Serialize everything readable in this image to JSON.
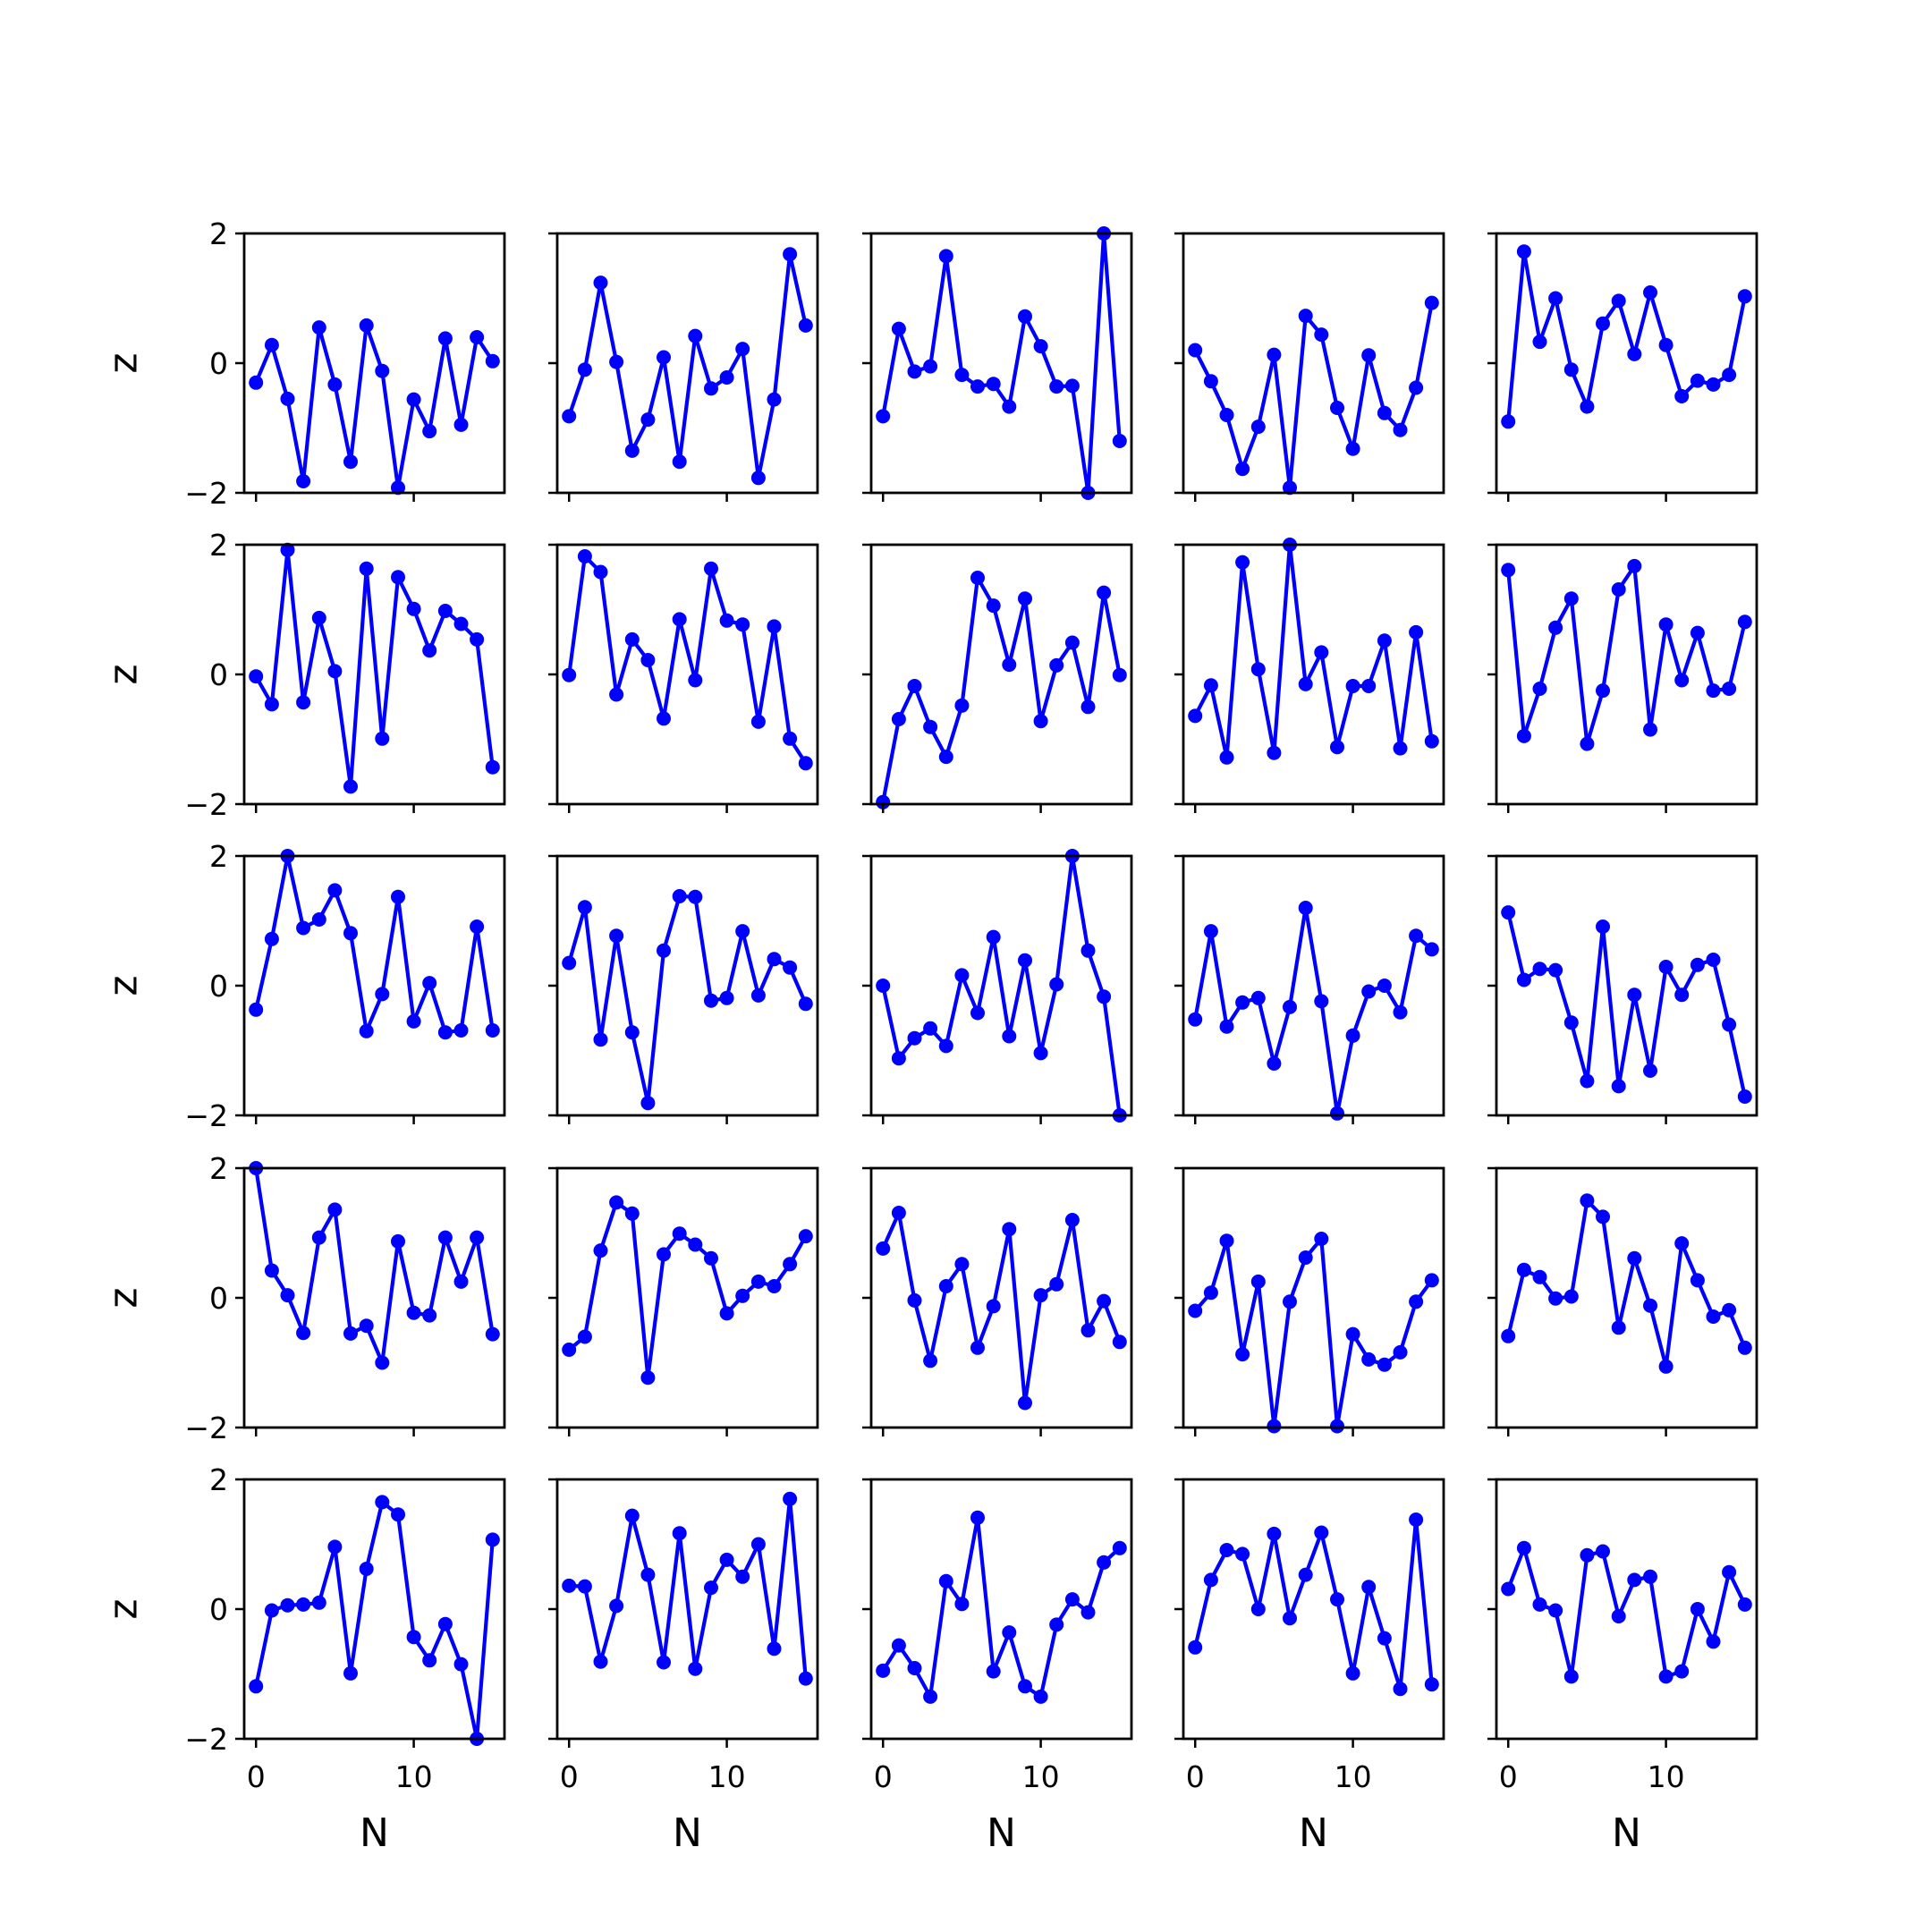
{
  "figure": {
    "rows": 5,
    "cols": 5,
    "line_color": "#0000ff",
    "xlabel": "N",
    "ylabel": "z",
    "ylim": [
      -2,
      2
    ],
    "xlim": [
      -0.75,
      15.75
    ],
    "yticks": [
      {
        "value": -2,
        "label": "−2"
      },
      {
        "value": 0,
        "label": "0"
      },
      {
        "value": 2,
        "label": "2"
      }
    ],
    "xticks": [
      {
        "value": 0,
        "label": "0"
      },
      {
        "value": 10,
        "label": "10"
      }
    ]
  },
  "chart_data": [
    {
      "type": "line",
      "row": 0,
      "col": 0,
      "x": [
        0,
        1,
        2,
        3,
        4,
        5,
        6,
        7,
        8,
        9,
        10,
        11,
        12,
        13,
        14,
        15
      ],
      "y": [
        -0.3,
        0.28,
        -0.55,
        -1.82,
        0.55,
        -0.33,
        -1.52,
        0.58,
        -0.12,
        -1.92,
        -0.56,
        -1.05,
        0.38,
        -0.95,
        0.4,
        0.03
      ]
    },
    {
      "type": "line",
      "row": 0,
      "col": 1,
      "x": [
        0,
        1,
        2,
        3,
        4,
        5,
        6,
        7,
        8,
        9,
        10,
        11,
        12,
        13,
        14,
        15
      ],
      "y": [
        -0.82,
        -0.1,
        1.24,
        0.02,
        -1.35,
        -0.87,
        0.09,
        -1.52,
        0.42,
        -0.39,
        -0.22,
        0.22,
        -1.77,
        -0.56,
        1.68,
        0.58
      ]
    },
    {
      "type": "line",
      "row": 0,
      "col": 2,
      "x": [
        0,
        1,
        2,
        3,
        4,
        5,
        6,
        7,
        8,
        9,
        10,
        11,
        12,
        13,
        14,
        15
      ],
      "y": [
        -0.82,
        0.53,
        -0.13,
        -0.05,
        1.65,
        -0.18,
        -0.36,
        -0.32,
        -0.67,
        0.72,
        0.26,
        -0.36,
        -0.35,
        -2.0,
        2.0,
        -1.2
      ]
    },
    {
      "type": "line",
      "row": 0,
      "col": 3,
      "x": [
        0,
        1,
        2,
        3,
        4,
        5,
        6,
        7,
        8,
        9,
        10,
        11,
        12,
        13,
        14,
        15
      ],
      "y": [
        0.2,
        -0.28,
        -0.8,
        -1.63,
        -0.98,
        0.13,
        -1.92,
        0.73,
        0.44,
        -0.69,
        -1.32,
        0.12,
        -0.77,
        -1.03,
        -0.38,
        0.93
      ]
    },
    {
      "type": "line",
      "row": 0,
      "col": 4,
      "x": [
        0,
        1,
        2,
        3,
        4,
        5,
        6,
        7,
        8,
        9,
        10,
        11,
        12,
        13,
        14,
        15
      ],
      "y": [
        -0.9,
        1.72,
        0.33,
        1.0,
        -0.1,
        -0.67,
        0.61,
        0.96,
        0.14,
        1.09,
        0.28,
        -0.51,
        -0.27,
        -0.33,
        -0.18,
        1.03
      ]
    },
    {
      "type": "line",
      "row": 1,
      "col": 0,
      "x": [
        0,
        1,
        2,
        3,
        4,
        5,
        6,
        7,
        8,
        9,
        10,
        11,
        12,
        13,
        14,
        15
      ],
      "y": [
        -0.03,
        -0.46,
        1.92,
        -0.43,
        0.87,
        0.05,
        -1.73,
        1.63,
        -0.99,
        1.5,
        1.01,
        0.37,
        0.98,
        0.78,
        0.54,
        -1.43
      ]
    },
    {
      "type": "line",
      "row": 1,
      "col": 1,
      "x": [
        0,
        1,
        2,
        3,
        4,
        5,
        6,
        7,
        8,
        9,
        10,
        11,
        12,
        13,
        14,
        15
      ],
      "y": [
        -0.01,
        1.82,
        1.58,
        -0.31,
        0.54,
        0.22,
        -0.68,
        0.85,
        -0.09,
        1.63,
        0.83,
        0.77,
        -0.73,
        0.74,
        -0.99,
        -1.37
      ]
    },
    {
      "type": "line",
      "row": 1,
      "col": 2,
      "x": [
        0,
        1,
        2,
        3,
        4,
        5,
        6,
        7,
        8,
        9,
        10,
        11,
        12,
        13,
        14,
        15
      ],
      "y": [
        -1.97,
        -0.69,
        -0.18,
        -0.81,
        -1.27,
        -0.48,
        1.49,
        1.06,
        0.15,
        1.17,
        -0.72,
        0.14,
        0.49,
        -0.5,
        1.26,
        -0.01
      ]
    },
    {
      "type": "line",
      "row": 1,
      "col": 3,
      "x": [
        0,
        1,
        2,
        3,
        4,
        5,
        6,
        7,
        8,
        9,
        10,
        11,
        12,
        13,
        14,
        15
      ],
      "y": [
        -0.64,
        -0.17,
        -1.28,
        1.73,
        0.08,
        -1.21,
        2.0,
        -0.15,
        0.34,
        -1.12,
        -0.18,
        -0.18,
        0.52,
        -1.14,
        0.65,
        -1.03
      ]
    },
    {
      "type": "line",
      "row": 1,
      "col": 4,
      "x": [
        0,
        1,
        2,
        3,
        4,
        5,
        6,
        7,
        8,
        9,
        10,
        11,
        12,
        13,
        14,
        15
      ],
      "y": [
        1.61,
        -0.95,
        -0.22,
        0.72,
        1.17,
        -1.07,
        -0.25,
        1.31,
        1.67,
        -0.85,
        0.77,
        -0.09,
        0.64,
        -0.25,
        -0.22,
        0.81
      ]
    },
    {
      "type": "line",
      "row": 2,
      "col": 0,
      "x": [
        0,
        1,
        2,
        3,
        4,
        5,
        6,
        7,
        8,
        9,
        10,
        11,
        12,
        13,
        14,
        15
      ],
      "y": [
        -0.37,
        0.72,
        2.0,
        0.89,
        1.02,
        1.47,
        0.81,
        -0.7,
        -0.13,
        1.37,
        -0.55,
        0.04,
        -0.72,
        -0.69,
        0.91,
        -0.69
      ]
    },
    {
      "type": "line",
      "row": 2,
      "col": 1,
      "x": [
        0,
        1,
        2,
        3,
        4,
        5,
        6,
        7,
        8,
        9,
        10,
        11,
        12,
        13,
        14,
        15
      ],
      "y": [
        0.35,
        1.21,
        -0.83,
        0.77,
        -0.72,
        -1.81,
        0.54,
        1.38,
        1.37,
        -0.23,
        -0.19,
        0.84,
        -0.15,
        0.41,
        0.28,
        -0.28
      ]
    },
    {
      "type": "line",
      "row": 2,
      "col": 2,
      "x": [
        0,
        1,
        2,
        3,
        4,
        5,
        6,
        7,
        8,
        9,
        10,
        11,
        12,
        13,
        14,
        15
      ],
      "y": [
        0.0,
        -1.12,
        -0.81,
        -0.66,
        -0.93,
        0.16,
        -0.42,
        0.75,
        -0.78,
        0.39,
        -1.04,
        0.02,
        2.0,
        0.54,
        -0.17,
        -2.0
      ]
    },
    {
      "type": "line",
      "row": 2,
      "col": 3,
      "x": [
        0,
        1,
        2,
        3,
        4,
        5,
        6,
        7,
        8,
        9,
        10,
        11,
        12,
        13,
        14,
        15
      ],
      "y": [
        -0.52,
        0.84,
        -0.63,
        -0.26,
        -0.19,
        -1.2,
        -0.33,
        1.2,
        -0.24,
        -1.97,
        -0.77,
        -0.09,
        0.0,
        -0.41,
        0.77,
        0.56
      ]
    },
    {
      "type": "line",
      "row": 2,
      "col": 4,
      "x": [
        0,
        1,
        2,
        3,
        4,
        5,
        6,
        7,
        8,
        9,
        10,
        11,
        12,
        13,
        14,
        15
      ],
      "y": [
        1.13,
        0.09,
        0.26,
        0.24,
        -0.57,
        -1.47,
        0.91,
        -1.55,
        -0.14,
        -1.31,
        0.29,
        -0.14,
        0.32,
        0.4,
        -0.6,
        -1.71
      ]
    },
    {
      "type": "line",
      "row": 3,
      "col": 0,
      "x": [
        0,
        1,
        2,
        3,
        4,
        5,
        6,
        7,
        8,
        9,
        10,
        11,
        12,
        13,
        14,
        15
      ],
      "y": [
        2.0,
        0.42,
        0.04,
        -0.54,
        0.93,
        1.36,
        -0.55,
        -0.43,
        -1.0,
        0.87,
        -0.23,
        -0.27,
        0.93,
        0.25,
        0.93,
        -0.56
      ]
    },
    {
      "type": "line",
      "row": 3,
      "col": 1,
      "x": [
        0,
        1,
        2,
        3,
        4,
        5,
        6,
        7,
        8,
        9,
        10,
        11,
        12,
        13,
        14,
        15
      ],
      "y": [
        -0.8,
        -0.6,
        0.73,
        1.47,
        1.3,
        -1.23,
        0.67,
        0.99,
        0.82,
        0.61,
        -0.24,
        0.03,
        0.25,
        0.18,
        0.52,
        0.95
      ]
    },
    {
      "type": "line",
      "row": 3,
      "col": 2,
      "x": [
        0,
        1,
        2,
        3,
        4,
        5,
        6,
        7,
        8,
        9,
        10,
        11,
        12,
        13,
        14,
        15
      ],
      "y": [
        0.76,
        1.31,
        -0.04,
        -0.97,
        0.18,
        0.52,
        -0.77,
        -0.13,
        1.06,
        -1.62,
        0.04,
        0.21,
        1.2,
        -0.5,
        -0.05,
        -0.68
      ]
    },
    {
      "type": "line",
      "row": 3,
      "col": 3,
      "x": [
        0,
        1,
        2,
        3,
        4,
        5,
        6,
        7,
        8,
        9,
        10,
        11,
        12,
        13,
        14,
        15
      ],
      "y": [
        -0.2,
        0.08,
        0.88,
        -0.87,
        0.25,
        -1.98,
        -0.06,
        0.62,
        0.91,
        -1.98,
        -0.56,
        -0.95,
        -1.03,
        -0.84,
        -0.06,
        0.27
      ]
    },
    {
      "type": "line",
      "row": 3,
      "col": 4,
      "x": [
        0,
        1,
        2,
        3,
        4,
        5,
        6,
        7,
        8,
        9,
        10,
        11,
        12,
        13,
        14,
        15
      ],
      "y": [
        -0.59,
        0.43,
        0.32,
        -0.01,
        0.02,
        1.5,
        1.25,
        -0.46,
        0.61,
        -0.12,
        -1.06,
        0.84,
        0.27,
        -0.29,
        -0.19,
        -0.77
      ]
    },
    {
      "type": "line",
      "row": 4,
      "col": 0,
      "x": [
        0,
        1,
        2,
        3,
        4,
        5,
        6,
        7,
        8,
        9,
        10,
        11,
        12,
        13,
        14,
        15
      ],
      "y": [
        -1.19,
        -0.02,
        0.06,
        0.07,
        0.1,
        0.96,
        -0.99,
        0.62,
        1.65,
        1.46,
        -0.43,
        -0.79,
        -0.23,
        -0.85,
        -2.0,
        1.07
      ]
    },
    {
      "type": "line",
      "row": 4,
      "col": 1,
      "x": [
        0,
        1,
        2,
        3,
        4,
        5,
        6,
        7,
        8,
        9,
        10,
        11,
        12,
        13,
        14,
        15
      ],
      "y": [
        0.36,
        0.35,
        -0.81,
        0.05,
        1.44,
        0.53,
        -0.82,
        1.17,
        -0.92,
        0.33,
        0.76,
        0.5,
        1.0,
        -0.61,
        1.7,
        -1.07
      ]
    },
    {
      "type": "line",
      "row": 4,
      "col": 2,
      "x": [
        0,
        1,
        2,
        3,
        4,
        5,
        6,
        7,
        8,
        9,
        10,
        11,
        12,
        13,
        14,
        15
      ],
      "y": [
        -0.95,
        -0.56,
        -0.91,
        -1.35,
        0.43,
        0.08,
        1.41,
        -0.96,
        -0.36,
        -1.19,
        -1.35,
        -0.24,
        0.15,
        -0.05,
        0.72,
        0.94
      ]
    },
    {
      "type": "line",
      "row": 4,
      "col": 3,
      "x": [
        0,
        1,
        2,
        3,
        4,
        5,
        6,
        7,
        8,
        9,
        10,
        11,
        12,
        13,
        14,
        15
      ],
      "y": [
        -0.59,
        0.45,
        0.91,
        0.85,
        0.0,
        1.16,
        -0.14,
        0.53,
        1.18,
        0.15,
        -0.99,
        0.34,
        -0.45,
        -1.23,
        1.38,
        -1.16
      ]
    },
    {
      "type": "line",
      "row": 4,
      "col": 4,
      "x": [
        0,
        1,
        2,
        3,
        4,
        5,
        6,
        7,
        8,
        9,
        10,
        11,
        12,
        13,
        14,
        15
      ],
      "y": [
        0.31,
        0.94,
        0.07,
        -0.02,
        -1.04,
        0.83,
        0.89,
        -0.11,
        0.45,
        0.5,
        -1.04,
        -0.96,
        0.0,
        -0.5,
        0.57,
        0.07
      ]
    }
  ]
}
